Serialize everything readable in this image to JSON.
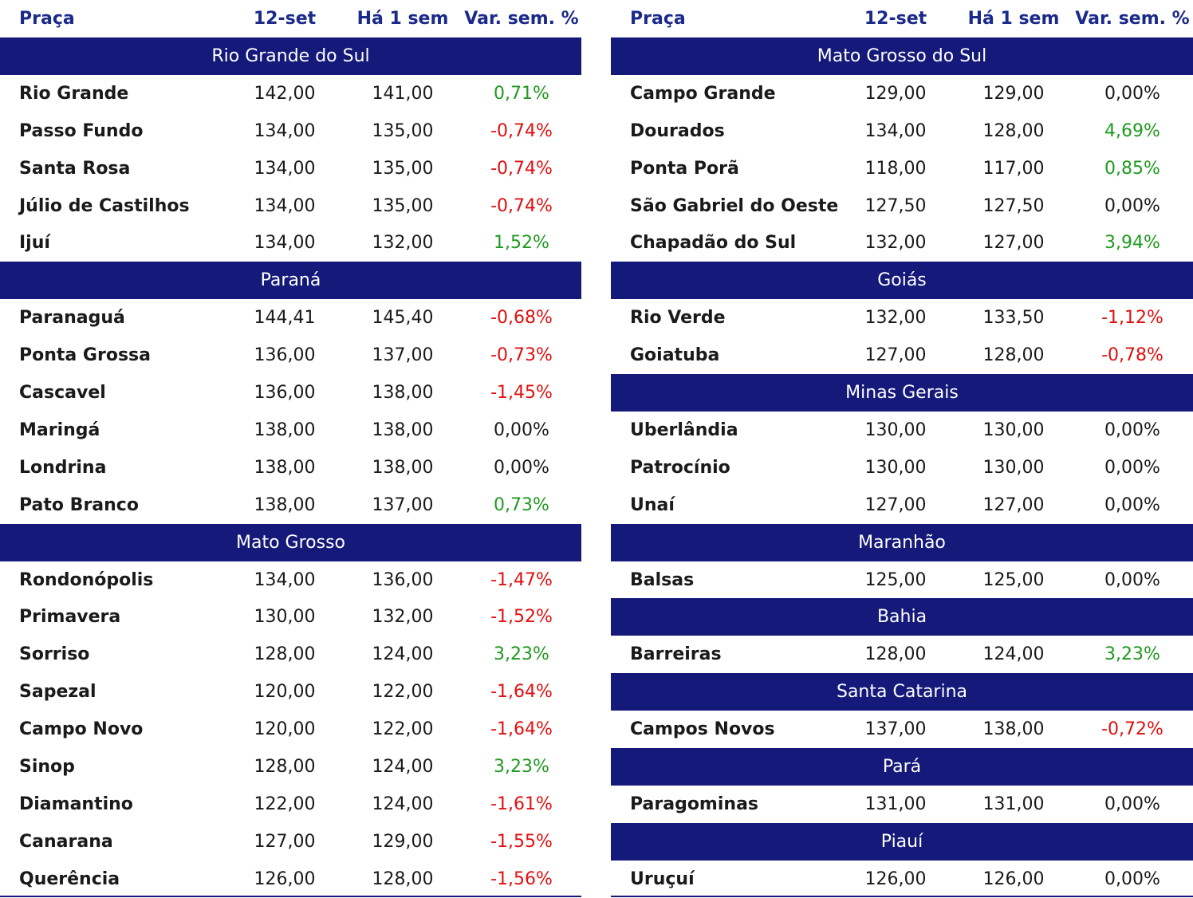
{
  "tables": [
    {
      "header": [
        "Praça",
        "12-set",
        "Há 1 sem",
        "Var. sem. %"
      ],
      "groups": [
        {
          "name": "Rio Grande do Sul",
          "rows": [
            [
              "Rio Grande",
              "142,00",
              "141,00",
              "0,71%"
            ],
            [
              "Passo Fundo",
              "134,00",
              "135,00",
              "-0,74%"
            ],
            [
              "Santa Rosa",
              "134,00",
              "135,00",
              "-0,74%"
            ],
            [
              "Júlio de Castilhos",
              "134,00",
              "135,00",
              "-0,74%"
            ],
            [
              "Ijuí",
              "134,00",
              "132,00",
              "1,52%"
            ]
          ]
        },
        {
          "name": "Paraná",
          "rows": [
            [
              "Paranaguá",
              "144,41",
              "145,40",
              "-0,68%"
            ],
            [
              "Ponta Grossa",
              "136,00",
              "137,00",
              "-0,73%"
            ],
            [
              "Cascavel",
              "136,00",
              "138,00",
              "-1,45%"
            ],
            [
              "Maringá",
              "138,00",
              "138,00",
              "0,00%"
            ],
            [
              "Londrina",
              "138,00",
              "138,00",
              "0,00%"
            ],
            [
              "Pato Branco",
              "138,00",
              "137,00",
              "0,73%"
            ]
          ]
        },
        {
          "name": "Mato Grosso",
          "rows": [
            [
              "Rondonópolis",
              "134,00",
              "136,00",
              "-1,47%"
            ],
            [
              "Primavera",
              "130,00",
              "132,00",
              "-1,52%"
            ],
            [
              "Sorriso",
              "128,00",
              "124,00",
              "3,23%"
            ],
            [
              "Sapezal",
              "120,00",
              "122,00",
              "-1,64%"
            ],
            [
              "Campo Novo",
              "120,00",
              "122,00",
              "-1,64%"
            ],
            [
              "Sinop",
              "128,00",
              "124,00",
              "3,23%"
            ],
            [
              "Diamantino",
              "122,00",
              "124,00",
              "-1,61%"
            ],
            [
              "Canarana",
              "127,00",
              "129,00",
              "-1,55%"
            ],
            [
              "Querência",
              "126,00",
              "128,00",
              "-1,56%"
            ]
          ]
        }
      ]
    },
    {
      "header": [
        "Praça",
        "12-set",
        "Há 1 sem",
        "Var. sem. %"
      ],
      "groups": [
        {
          "name": "Mato Grosso do Sul",
          "rows": [
            [
              "Campo Grande",
              "129,00",
              "129,00",
              "0,00%"
            ],
            [
              "Dourados",
              "134,00",
              "128,00",
              "4,69%"
            ],
            [
              "Ponta Porã",
              "118,00",
              "117,00",
              "0,85%"
            ],
            [
              "São Gabriel do Oeste",
              "127,50",
              "127,50",
              "0,00%"
            ],
            [
              "Chapadão do Sul",
              "132,00",
              "127,00",
              "3,94%"
            ]
          ]
        },
        {
          "name": "Goiás",
          "rows": [
            [
              "Rio Verde",
              "132,00",
              "133,50",
              "-1,12%"
            ],
            [
              "Goiatuba",
              "127,00",
              "128,00",
              "-0,78%"
            ]
          ]
        },
        {
          "name": "Minas Gerais",
          "rows": [
            [
              "Uberlândia",
              "130,00",
              "130,00",
              "0,00%"
            ],
            [
              "Patrocínio",
              "130,00",
              "130,00",
              "0,00%"
            ],
            [
              "Unaí",
              "127,00",
              "127,00",
              "0,00%"
            ]
          ]
        },
        {
          "name": "Maranhão",
          "rows": [
            [
              "Balsas",
              "125,00",
              "125,00",
              "0,00%"
            ]
          ]
        },
        {
          "name": "Bahia",
          "rows": [
            [
              "Barreiras",
              "128,00",
              "124,00",
              "3,23%"
            ]
          ]
        },
        {
          "name": "Santa Catarina",
          "rows": [
            [
              "Campos Novos",
              "137,00",
              "138,00",
              "-0,72%"
            ]
          ]
        },
        {
          "name": "Pará",
          "rows": [
            [
              "Paragominas",
              "131,00",
              "131,00",
              "0,00%"
            ]
          ]
        },
        {
          "name": "Piauí",
          "rows": [
            [
              "Uruçuí",
              "126,00",
              "126,00",
              "0,00%"
            ]
          ]
        }
      ]
    }
  ]
}
